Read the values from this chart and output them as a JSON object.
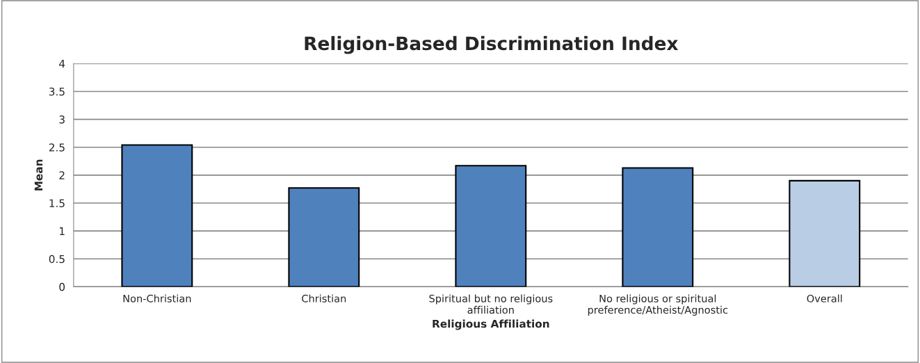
{
  "chart_data": {
    "type": "bar",
    "title": "Religion-Based Discrimination Index",
    "xlabel": "Religious Affiliation",
    "ylabel": "Mean",
    "categories": [
      "Non-Christian",
      "Christian",
      "Spiritual but no religious affiliation",
      "No religious or spiritual preference/Atheist/Agnostic",
      "Overall"
    ],
    "values": [
      2.54,
      1.77,
      2.17,
      2.13,
      1.9
    ],
    "colors": [
      "#4f81bd",
      "#4f81bd",
      "#4f81bd",
      "#4f81bd",
      "#b9cde5"
    ],
    "ylim": [
      0,
      4
    ],
    "yticks": [
      0,
      0.5,
      1,
      1.5,
      2,
      2.5,
      3,
      3.5,
      4
    ],
    "grid": "y",
    "legend": false
  }
}
